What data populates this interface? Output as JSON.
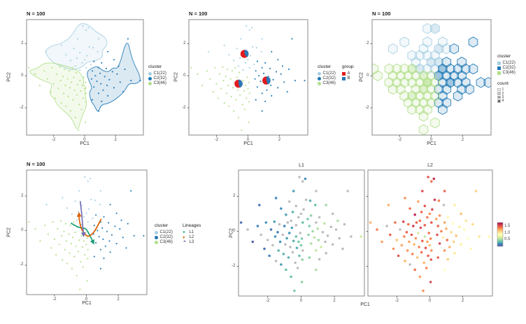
{
  "palette": {
    "clusters": [
      {
        "id": "C1",
        "label": "C1(22)",
        "color": "#a6cee3"
      },
      {
        "id": "C2",
        "label": "C2(32)",
        "color": "#1f78b4"
      },
      {
        "id": "C3",
        "label": "C3(46)",
        "color": "#b2df8a"
      }
    ],
    "groups": [
      {
        "label": "A",
        "color": "#e31a1c"
      },
      {
        "label": "B",
        "color": "#2e77b5"
      }
    ],
    "lineages": [
      {
        "label": "L1",
        "color": "#1b9e77",
        "tilt": -8
      },
      {
        "label": "L2",
        "color": "#d95f02",
        "tilt": -32
      },
      {
        "label": "L3",
        "color": "#7570b3",
        "tilt": 28
      }
    ],
    "na_color": "#b9b9b9",
    "spectral_stops": [
      "#5e4fa2",
      "#3288bd",
      "#66c2a5",
      "#abdda4",
      "#e6f598",
      "#ffffbf",
      "#fee08b",
      "#fdae61",
      "#f46d43",
      "#d53e4f",
      "#9e0142"
    ],
    "panel_border": "#8a8a8a"
  },
  "legend": {
    "cluster_title": "cluster",
    "group_title": "group",
    "count_title": "count",
    "lineages_title": "Lineages",
    "count_labels": [
      "1",
      "2",
      "3",
      "4"
    ],
    "count_colors": [
      "#f2f2f2",
      "#c6c6c6",
      "#979797",
      "#6b6b6b"
    ]
  },
  "chart_data": {
    "type": "scatter",
    "n_label": "N = 100",
    "xlabel": "PC1",
    "ylabel": "PC2",
    "xlim": [
      -3.75,
      3.8
    ],
    "ylim": [
      -3.7,
      3.5
    ],
    "xticks": [
      -2,
      0,
      2
    ],
    "yticks": [
      2,
      0,
      -2
    ],
    "points": [
      [
        -0.1,
        3.1,
        1,
        null,
        1.55
      ],
      [
        0.25,
        3.0,
        1,
        0.2,
        1.7
      ],
      [
        0.1,
        2.85,
        1,
        null,
        1.45
      ],
      [
        -0.45,
        2.3,
        1,
        0.25,
        1.6
      ],
      [
        0.9,
        2.3,
        1,
        null,
        1.5
      ],
      [
        -1.5,
        1.9,
        1,
        0.15,
        1.35
      ],
      [
        0.3,
        1.8,
        1,
        null,
        1.65
      ],
      [
        0.55,
        1.75,
        1,
        0.3,
        1.4
      ],
      [
        -0.7,
        1.7,
        1,
        null,
        1.3
      ],
      [
        -2.5,
        1.5,
        1,
        0.1,
        1.25
      ],
      [
        0.85,
        1.5,
        1,
        0.35,
        null
      ],
      [
        -0.3,
        1.45,
        1,
        null,
        1.55
      ],
      [
        -1.2,
        1.3,
        1,
        0.2,
        1.45
      ],
      [
        0.15,
        1.25,
        1,
        null,
        1.6
      ],
      [
        -0.5,
        1.1,
        1,
        0.3,
        1.5
      ],
      [
        0.0,
        1.0,
        1,
        null,
        1.35
      ],
      [
        -0.9,
        0.95,
        1,
        0.25,
        1.7
      ],
      [
        -0.15,
        0.8,
        1,
        null,
        1.4
      ],
      [
        0.4,
        0.7,
        1,
        0.4,
        1.3
      ],
      [
        -0.6,
        0.6,
        1,
        null,
        1.45
      ],
      [
        0.1,
        0.5,
        1,
        0.35,
        1.55
      ],
      [
        -0.3,
        0.35,
        1,
        null,
        1.5
      ],
      [
        2.8,
        2.3,
        2,
        null,
        1.15
      ],
      [
        1.5,
        1.5,
        2,
        0.5,
        1.0
      ],
      [
        1.9,
        1.0,
        2,
        null,
        1.2
      ],
      [
        0.6,
        0.9,
        2,
        0.45,
        1.35
      ],
      [
        1.1,
        0.8,
        2,
        null,
        0.95
      ],
      [
        2.2,
        0.6,
        2,
        0.55,
        1.05
      ],
      [
        0.9,
        0.5,
        2,
        null,
        1.3
      ],
      [
        1.4,
        0.45,
        2,
        0.6,
        0.9
      ],
      [
        2.6,
        0.4,
        2,
        null,
        1.1
      ],
      [
        0.5,
        0.3,
        2,
        0.4,
        1.5
      ],
      [
        1.8,
        0.25,
        2,
        null,
        1.0
      ],
      [
        1.0,
        0.15,
        2,
        0.55,
        1.25
      ],
      [
        2.1,
        0.1,
        2,
        null,
        0.85
      ],
      [
        0.7,
        0.0,
        2,
        0.5,
        1.4
      ],
      [
        1.3,
        -0.05,
        2,
        null,
        1.1
      ],
      [
        3.6,
        -0.3,
        2,
        0.65,
        0.95
      ],
      [
        3.0,
        -0.3,
        2,
        null,
        1.05
      ],
      [
        0.45,
        -0.2,
        2,
        0.45,
        1.55
      ],
      [
        1.6,
        -0.25,
        2,
        null,
        1.2
      ],
      [
        0.8,
        -0.35,
        2,
        0.6,
        1.0
      ],
      [
        2.3,
        -0.4,
        2,
        null,
        0.9
      ],
      [
        1.05,
        -0.5,
        2,
        0.5,
        1.45
      ],
      [
        1.45,
        -0.6,
        2,
        null,
        1.15
      ],
      [
        0.6,
        -0.7,
        2,
        0.55,
        1.6
      ],
      [
        1.9,
        -0.75,
        2,
        null,
        1.0
      ],
      [
        1.2,
        -0.9,
        2,
        0.65,
        1.25
      ],
      [
        2.5,
        -1.0,
        2,
        null,
        0.95
      ],
      [
        0.9,
        -1.1,
        2,
        0.6,
        1.35
      ],
      [
        1.5,
        -1.25,
        2,
        null,
        1.05
      ],
      [
        0.5,
        -1.5,
        2,
        0.45,
        1.5
      ],
      [
        1.1,
        -1.6,
        2,
        null,
        1.15
      ],
      [
        0.9,
        -2.2,
        2,
        0.55,
        0.9
      ],
      [
        -3.6,
        0.5,
        3,
        0.1,
        1.25
      ],
      [
        -3.2,
        0.1,
        3,
        null,
        1.4
      ],
      [
        -2.9,
        -0.6,
        3,
        0.05,
        1.3
      ],
      [
        -2.6,
        0.3,
        3,
        0.15,
        null
      ],
      [
        -2.4,
        -0.2,
        3,
        null,
        1.5
      ],
      [
        -2.2,
        -1.0,
        3,
        0.1,
        1.35
      ],
      [
        -2.1,
        0.5,
        3,
        0.2,
        1.45
      ],
      [
        -2.0,
        -0.5,
        3,
        null,
        1.2
      ],
      [
        -1.9,
        -1.4,
        3,
        0.15,
        1.55
      ],
      [
        -1.8,
        0.1,
        3,
        0.1,
        null
      ],
      [
        -1.7,
        -0.8,
        3,
        null,
        1.3
      ],
      [
        -1.6,
        0.55,
        3,
        0.25,
        1.6
      ],
      [
        -1.55,
        -0.3,
        3,
        0.2,
        1.4
      ],
      [
        -1.5,
        -1.7,
        3,
        null,
        1.25
      ],
      [
        -1.4,
        -0.05,
        3,
        0.15,
        1.5
      ],
      [
        -1.35,
        -1.1,
        3,
        0.3,
        1.35
      ],
      [
        -1.3,
        0.4,
        3,
        null,
        1.45
      ],
      [
        -1.25,
        -0.6,
        3,
        0.2,
        1.3
      ],
      [
        -1.2,
        -1.9,
        3,
        0.25,
        null
      ],
      [
        -1.1,
        -0.2,
        3,
        null,
        1.55
      ],
      [
        -1.05,
        -1.3,
        3,
        0.3,
        1.4
      ],
      [
        -1.0,
        0.3,
        3,
        0.15,
        1.65
      ],
      [
        -0.95,
        -0.75,
        3,
        null,
        1.25
      ],
      [
        -0.9,
        -2.2,
        3,
        0.35,
        1.45
      ],
      [
        -0.85,
        -0.4,
        3,
        0.25,
        1.35
      ],
      [
        -0.8,
        0.5,
        3,
        null,
        1.5
      ],
      [
        -0.75,
        -1.5,
        3,
        0.3,
        1.2
      ],
      [
        -0.7,
        -0.1,
        3,
        0.2,
        0.65
      ],
      [
        -0.65,
        -0.9,
        3,
        null,
        1.4
      ],
      [
        -0.6,
        -2.6,
        3,
        0.35,
        1.3
      ],
      [
        -0.55,
        0.2,
        3,
        0.25,
        1.6
      ],
      [
        -0.5,
        -1.2,
        3,
        null,
        1.45
      ],
      [
        -0.45,
        -0.55,
        3,
        0.3,
        1.5
      ],
      [
        -0.4,
        -3.4,
        3,
        0.4,
        1.35
      ],
      [
        -0.35,
        -1.8,
        3,
        null,
        1.25
      ],
      [
        -0.3,
        -0.3,
        3,
        0.35,
        0.6
      ],
      [
        -0.25,
        -0.95,
        3,
        0.3,
        1.55
      ],
      [
        -0.2,
        -2.1,
        3,
        null,
        1.4
      ],
      [
        -0.15,
        -0.6,
        3,
        0.4,
        1.3
      ],
      [
        -0.1,
        -1.4,
        3,
        0.35,
        1.5
      ],
      [
        -0.05,
        -0.1,
        3,
        null,
        1.45
      ],
      [
        0.0,
        -0.8,
        3,
        0.4,
        1.2
      ],
      [
        0.05,
        -2.9,
        3,
        0.45,
        1.6
      ],
      [
        0.1,
        -1.1,
        3,
        null,
        1.35
      ],
      [
        0.05,
        -0.42,
        3,
        0.4,
        1.4
      ],
      [
        0.08,
        -1.62,
        3,
        0.45,
        1.55
      ]
    ],
    "hulls": {
      "C1": [
        [
          -0.35,
          3.3
        ],
        [
          0.25,
          3.2
        ],
        [
          0.7,
          2.75
        ],
        [
          1.35,
          2.4
        ],
        [
          1.5,
          1.95
        ],
        [
          1.1,
          1.55
        ],
        [
          1.2,
          1.15
        ],
        [
          0.65,
          0.9
        ],
        [
          0.2,
          0.88
        ],
        [
          -0.2,
          0.5
        ],
        [
          -0.85,
          0.33
        ],
        [
          -1.55,
          0.62
        ],
        [
          -2.1,
          0.85
        ],
        [
          -2.62,
          1.5
        ],
        [
          -2.2,
          1.85
        ],
        [
          -1.45,
          2.02
        ],
        [
          -0.85,
          2.45
        ]
      ],
      "C2": [
        [
          0.15,
          0.25
        ],
        [
          0.45,
          0.48
        ],
        [
          0.85,
          0.6
        ],
        [
          1.15,
          0.32
        ],
        [
          1.55,
          0.22
        ],
        [
          1.85,
          0.52
        ],
        [
          2.2,
          0.42
        ],
        [
          2.75,
          2.45
        ],
        [
          3.05,
          1.0
        ],
        [
          3.7,
          -0.2
        ],
        [
          3.35,
          -0.52
        ],
        [
          2.85,
          -0.45
        ],
        [
          2.55,
          -1.05
        ],
        [
          1.65,
          -1.72
        ],
        [
          1.05,
          -1.8
        ],
        [
          0.88,
          -2.35
        ],
        [
          0.6,
          -1.8
        ],
        [
          0.42,
          -1.62
        ],
        [
          0.28,
          -1.0
        ],
        [
          0.52,
          -0.78
        ],
        [
          0.2,
          -0.15
        ]
      ],
      "C3": [
        [
          -3.7,
          0.3
        ],
        [
          -3.05,
          0.45
        ],
        [
          -2.55,
          0.85
        ],
        [
          -1.6,
          0.72
        ],
        [
          -0.6,
          0.42
        ],
        [
          -0.28,
          0.18
        ],
        [
          -0.02,
          -0.3
        ],
        [
          -0.12,
          -0.55
        ],
        [
          0.12,
          -0.72
        ],
        [
          -0.02,
          -1.0
        ],
        [
          0.18,
          -1.85
        ],
        [
          -0.2,
          -2.55
        ],
        [
          -0.45,
          -3.55
        ],
        [
          -0.85,
          -2.55
        ],
        [
          -1.75,
          -1.9
        ],
        [
          -1.95,
          -1.42
        ],
        [
          -2.3,
          -1.15
        ],
        [
          -2.05,
          -0.5
        ],
        [
          -2.6,
          -0.35
        ],
        [
          -3.1,
          -0.1
        ]
      ]
    },
    "pies": [
      {
        "x": -0.22,
        "y": 1.36,
        "A": 0.6,
        "B": 0.4
      },
      {
        "x": -0.6,
        "y": -0.5,
        "A": 0.55,
        "B": 0.45
      },
      {
        "x": 1.17,
        "y": -0.3,
        "A": 0.55,
        "B": 0.45
      }
    ],
    "hex": {
      "size": 0.28,
      "count_levels": [
        1,
        2,
        3,
        4
      ]
    },
    "lineage_curves": [
      {
        "name": "L1",
        "pts": [
          [
            -0.95,
            0.42
          ],
          [
            -0.5,
            0.2
          ],
          [
            -0.05,
            0.1
          ],
          [
            0.22,
            -0.28
          ],
          [
            0.45,
            -0.72
          ]
        ]
      },
      {
        "name": "L2",
        "pts": [
          [
            0.92,
            0.65
          ],
          [
            0.5,
            -0.05
          ],
          [
            0.1,
            -0.32
          ],
          [
            -0.28,
            0.05
          ],
          [
            -0.44,
            0.62
          ],
          [
            -0.46,
            0.98
          ]
        ]
      },
      {
        "name": "L3",
        "pts": [
          [
            -0.38,
            1.68
          ],
          [
            -0.3,
            1.05
          ],
          [
            -0.24,
            0.4
          ],
          [
            -0.17,
            -0.28
          ]
        ]
      }
    ],
    "facets": {
      "titles": [
        "L1",
        "L2"
      ],
      "colorbar": {
        "tick_labels": [
          "1.5",
          "1.0",
          "0.5"
        ],
        "domain": [
          0,
          1.8
        ]
      }
    }
  }
}
